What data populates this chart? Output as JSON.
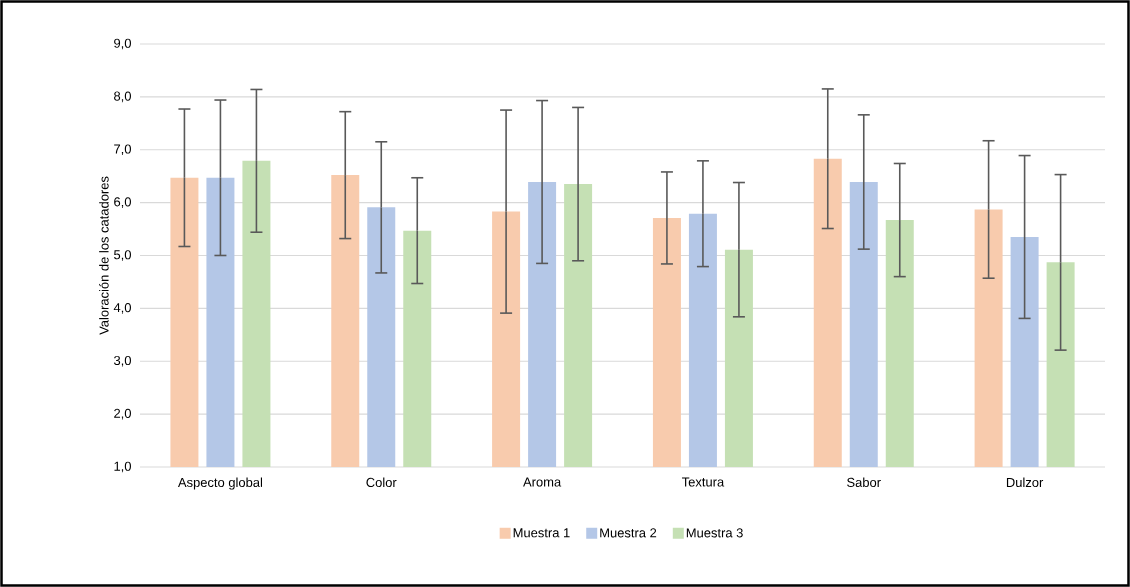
{
  "chart_data": {
    "type": "bar",
    "ylabel": "Valoración de los catadores",
    "categories": [
      "Aspecto global",
      "Color",
      "Aroma",
      "Textura",
      "Sabor",
      "Dulzor"
    ],
    "series": [
      {
        "name": "Muestra 1",
        "color": "#f8cbad",
        "values": [
          6.47,
          6.52,
          5.83,
          5.71,
          6.83,
          5.87
        ],
        "errors": [
          1.3,
          1.2,
          1.92,
          0.87,
          1.32,
          1.3
        ]
      },
      {
        "name": "Muestra 2",
        "color": "#b4c7e7",
        "values": [
          6.47,
          5.91,
          6.39,
          5.79,
          6.39,
          5.35
        ],
        "errors": [
          1.47,
          1.24,
          1.54,
          1.0,
          1.27,
          1.54
        ]
      },
      {
        "name": "Muestra 3",
        "color": "#c5e0b4",
        "values": [
          6.79,
          5.47,
          6.35,
          5.11,
          5.67,
          4.87
        ],
        "errors": [
          1.35,
          1.0,
          1.45,
          1.27,
          1.07,
          1.66
        ]
      }
    ],
    "ylim": [
      1,
      9
    ],
    "yticks": [
      {
        "value": 1,
        "label": "1,0"
      },
      {
        "value": 2,
        "label": "2,0"
      },
      {
        "value": 3,
        "label": "3,0"
      },
      {
        "value": 4,
        "label": "4,0"
      },
      {
        "value": 5,
        "label": "5,0"
      },
      {
        "value": 6,
        "label": "6,0"
      },
      {
        "value": 7,
        "label": "7,0"
      },
      {
        "value": 8,
        "label": "8,0"
      },
      {
        "value": 9,
        "label": "9,0"
      }
    ],
    "grid": "y",
    "legend": "bottom"
  }
}
